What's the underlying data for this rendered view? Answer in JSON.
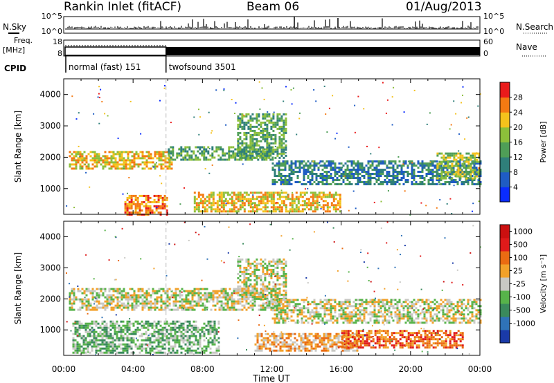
{
  "header": {
    "site": "Rankin Inlet (fitACF)",
    "beam": "Beam 06",
    "date": "01/Aug/2013"
  },
  "info_panels": {
    "nsky_label": "N.Sky",
    "nsky_ticks": [
      "10^5",
      "10^0"
    ],
    "nsearch_label": "N.Search",
    "nsearch_ticks": [
      "10^5",
      "10^0"
    ],
    "freq_label_1": "Freq.",
    "freq_label_2": "[MHz]",
    "freq_ticks": [
      "18",
      "8"
    ],
    "nave_label": "Nave",
    "nave_ticks": [
      "60",
      "0"
    ],
    "cpid_label": "CPID",
    "cpid_segments": [
      {
        "name": "normal (fast) 151",
        "start_h": 0,
        "end_h": 5.9
      },
      {
        "name": "twofsound 3501",
        "start_h": 5.9,
        "end_h": 24
      }
    ]
  },
  "chart_data": [
    {
      "type": "heatmap",
      "title": "",
      "xlabel": "",
      "ylabel": "Slant Range [km]",
      "xlim": [
        0,
        24
      ],
      "ylim": [
        180,
        4500
      ],
      "yticks": [
        "1000",
        "2000",
        "3000",
        "4000"
      ],
      "colorbar_label": "Power [dB]",
      "colorbar_ticks": [
        "4",
        "8",
        "12",
        "16",
        "20",
        "24",
        "28"
      ],
      "colorbar_colors": [
        "#0a2cff",
        "#1f5cc4",
        "#2f7f7a",
        "#4f9e57",
        "#8cbf3a",
        "#f4c21c",
        "#f47a12",
        "#ea1b1b"
      ],
      "bands": [
        {
          "t0": 0.3,
          "t1": 6.2,
          "r0": 1650,
          "r1": 2200,
          "level": 5
        },
        {
          "t0": 6.0,
          "t1": 12.0,
          "r0": 1900,
          "r1": 2350,
          "level": 3
        },
        {
          "t0": 10.0,
          "t1": 12.8,
          "r0": 2000,
          "r1": 3400,
          "level": 3
        },
        {
          "t0": 12.0,
          "t1": 24.0,
          "r0": 1150,
          "r1": 1900,
          "level": 2
        },
        {
          "t0": 3.5,
          "t1": 6.0,
          "r0": 180,
          "r1": 800,
          "level": 6
        },
        {
          "t0": 7.5,
          "t1": 16.0,
          "r0": 250,
          "r1": 900,
          "level": 5
        },
        {
          "t0": 21.5,
          "t1": 24.0,
          "r0": 1300,
          "r1": 2150,
          "level": 4
        }
      ]
    },
    {
      "type": "heatmap",
      "title": "",
      "xlabel": "Time UT",
      "ylabel": "Slant Range [km]",
      "xlim": [
        0,
        24
      ],
      "ylim": [
        180,
        4500
      ],
      "xticks": [
        "00:00",
        "04:00",
        "08:00",
        "12:00",
        "16:00",
        "20:00",
        "00:00"
      ],
      "yticks": [
        "1000",
        "2000",
        "3000",
        "4000"
      ],
      "colorbar_label": "Velocity [m s⁻¹]",
      "colorbar_ticks": [
        "1000",
        "500",
        "100",
        "25",
        "-25",
        "-100",
        "-500",
        "-1000"
      ],
      "colorbar_colors": [
        "#1a3aa8",
        "#2f73b8",
        "#3a8a5c",
        "#57b34a",
        "#c8c8c4",
        "#f2a12a",
        "#ea6b12",
        "#e01a1a",
        "#cc1010"
      ],
      "bands": [
        {
          "t0": 0.3,
          "t1": 12.5,
          "r0": 1650,
          "r1": 2350,
          "level": 4
        },
        {
          "t0": 10.0,
          "t1": 12.8,
          "r0": 2000,
          "r1": 3300,
          "level": 4
        },
        {
          "t0": 12.0,
          "t1": 24.0,
          "r0": 1200,
          "r1": 2000,
          "level": 4
        },
        {
          "t0": 0.5,
          "t1": 9.0,
          "r0": 250,
          "r1": 1300,
          "level": 3
        },
        {
          "t0": 11.0,
          "t1": 17.0,
          "r0": 350,
          "r1": 900,
          "level": 5
        },
        {
          "t0": 16.0,
          "t1": 23.0,
          "r0": 400,
          "r1": 1000,
          "level": 6
        }
      ]
    }
  ]
}
